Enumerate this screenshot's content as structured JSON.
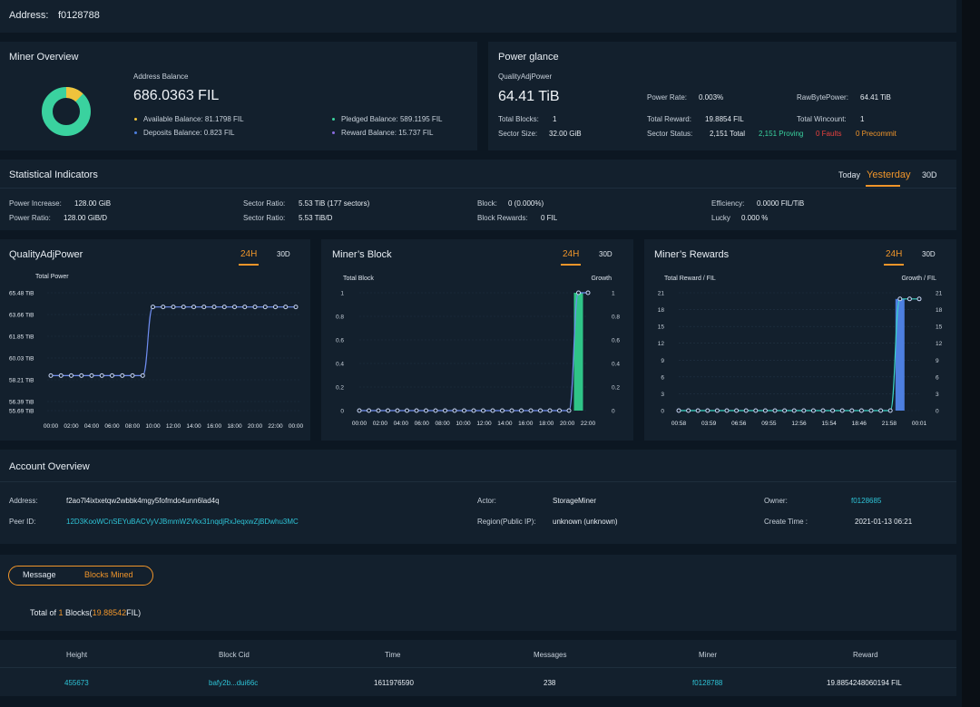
{
  "address_bar": {
    "label": "Address:",
    "value": "f0128788"
  },
  "miner_overview": {
    "title": "Miner Overview",
    "balance_label": "Address Balance",
    "balance_value": "686.0363 FIL",
    "donut_fraction_yellow": 0.12,
    "legend": [
      {
        "label": "Available Balance: 81.1798 FIL",
        "color": "#f0c33c"
      },
      {
        "label": "Deposits Balance: 0.823 FIL",
        "color": "#4d7fe0"
      },
      {
        "label": "Pledged Balance: 589.1195 FIL",
        "color": "#3ad29f"
      },
      {
        "label": "Reward Balance: 15.737 FIL",
        "color": "#8a6be0"
      }
    ]
  },
  "power_glance": {
    "title": "Power glance",
    "qap_label": "QualityAdjPower",
    "qap_value": "64.41 TiB",
    "total_blocks_label": "Total Blocks:",
    "total_blocks": "1",
    "sector_size_label": "Sector Size:",
    "sector_size": "32.00 GiB",
    "power_rate_label": "Power Rate:",
    "power_rate": "0.003%",
    "total_reward_label": "Total Reward:",
    "total_reward": "19.8854 FIL",
    "sector_status_label": "Sector Status:",
    "sector_total": "2,151 Total",
    "sector_proving": "2,151 Proving",
    "sector_faults": "0 Faults",
    "sector_precommit": "0 Precommit",
    "raw_power_label": "RawBytePower:",
    "raw_power": "64.41 TiB",
    "wincount_label": "Total Wincount:",
    "wincount": "1"
  },
  "stats": {
    "title": "Statistical Indicators",
    "tabs": [
      "Today",
      "Yesterday",
      "30D"
    ],
    "items": [
      {
        "label": "Power Increase:",
        "value": "128.00 GiB"
      },
      {
        "label": "Power Ratio:",
        "value": "128.00 GiB/D"
      },
      {
        "label": "Sector Ratio:",
        "value": "5.53 TiB (177 sectors)"
      },
      {
        "label": "Sector Ratio:",
        "value": "5.53 TiB/D"
      },
      {
        "label": "Block:",
        "value": "0 (0.000%)"
      },
      {
        "label": "Block Rewards:",
        "value": "0 FIL"
      },
      {
        "label": "Efficiency:",
        "value": "0.0000 FIL/TiB"
      },
      {
        "label": "Lucky",
        "value": "0.000 %"
      }
    ]
  },
  "charts": [
    {
      "title": "QualityAdjPower",
      "tabs": [
        "24H",
        "30D"
      ]
    },
    {
      "title": "Miner’s Block",
      "tabs": [
        "24H",
        "30D"
      ]
    },
    {
      "title": "Miner’s Rewards",
      "tabs": [
        "24H",
        "30D"
      ]
    }
  ],
  "chart_data": [
    {
      "type": "line",
      "ylabel": "Total Power",
      "yticks": [
        "65.48 TiB",
        "63.66 TiB",
        "61.85 TiB",
        "60.03 TiB",
        "58.21 TiB",
        "56.39 TiB",
        "55.69 TiB"
      ],
      "ylim": [
        55.69,
        65.48
      ],
      "xticks": [
        "00:00",
        "02:00",
        "04:00",
        "06:00",
        "08:00",
        "10:00",
        "12:00",
        "14:00",
        "16:00",
        "18:00",
        "20:00",
        "22:00",
        "00:00"
      ],
      "series": [
        {
          "values": [
            58.6,
            58.6,
            58.6,
            58.6,
            58.6,
            58.6,
            58.6,
            58.6,
            58.6,
            58.6,
            64.3,
            64.3,
            64.3,
            64.3,
            64.3,
            64.3,
            64.3,
            64.3,
            64.3,
            64.3,
            64.3,
            64.3,
            64.3,
            64.3,
            64.3
          ]
        }
      ],
      "color": "#6f8df0"
    },
    {
      "type": "bar+line",
      "ylabel": "Total Block",
      "y2label": "Growth",
      "yticks": [
        "1",
        "0.8",
        "0.6",
        "0.4",
        "0.2",
        "0"
      ],
      "y2ticks": [
        "1",
        "0.8",
        "0.6",
        "0.4",
        "0.2",
        "0"
      ],
      "ylim": [
        0,
        1
      ],
      "xticks": [
        "00:00",
        "02:00",
        "04:00",
        "06:00",
        "08:00",
        "10:00",
        "12:00",
        "14:00",
        "16:00",
        "18:00",
        "20:00",
        "22:00"
      ],
      "series": [
        {
          "kind": "line",
          "values": [
            0,
            0,
            0,
            0,
            0,
            0,
            0,
            0,
            0,
            0,
            0,
            0,
            0,
            0,
            0,
            0,
            0,
            0,
            0,
            0,
            0,
            0,
            0,
            1,
            1
          ]
        },
        {
          "kind": "bar",
          "values": [
            0,
            0,
            0,
            0,
            0,
            0,
            0,
            0,
            0,
            0,
            0,
            0,
            0,
            0,
            0,
            0,
            0,
            0,
            0,
            0,
            0,
            0,
            0,
            1,
            0
          ]
        }
      ],
      "line_color": "#6f8df0",
      "bar_color": "#2fc487"
    },
    {
      "type": "bar+line",
      "ylabel": "Total Reward / FIL",
      "y2label": "Growth / FIL",
      "yticks": [
        "21",
        "18",
        "15",
        "12",
        "9",
        "6",
        "3",
        "0"
      ],
      "y2ticks": [
        "21",
        "18",
        "15",
        "12",
        "9",
        "6",
        "3",
        "0"
      ],
      "ylim": [
        0,
        21
      ],
      "xticks": [
        "00:58",
        "03:59",
        "06:56",
        "09:55",
        "12:56",
        "15:54",
        "18:46",
        "21:58",
        "00:01"
      ],
      "series": [
        {
          "kind": "line",
          "values": [
            0,
            0,
            0,
            0,
            0,
            0,
            0,
            0,
            0,
            0,
            0,
            0,
            0,
            0,
            0,
            0,
            0,
            0,
            0,
            0,
            0,
            0,
            0,
            19.9,
            19.9,
            19.9
          ]
        },
        {
          "kind": "bar",
          "values": [
            0,
            0,
            0,
            0,
            0,
            0,
            0,
            0,
            0,
            0,
            0,
            0,
            0,
            0,
            0,
            0,
            0,
            0,
            0,
            0,
            0,
            0,
            0,
            19.9,
            0,
            0
          ]
        }
      ],
      "line_color": "#3ad2c4",
      "bar_color": "#4d7fe0"
    }
  ],
  "account": {
    "title": "Account Overview",
    "address_label": "Address:",
    "address": "f2ao7l4ixtxetqw2wbbk4mgy5fofmdo4unn6lad4q",
    "peer_label": "Peer ID:",
    "peer": "12D3KooWCnSEYuBACVyVJBmmW2Vkx31nqdjRxJeqxwZjBDwhu3MC",
    "actor_label": "Actor:",
    "actor": "StorageMiner",
    "region_label": "Region(Public IP):",
    "region": "unknown (unknown)",
    "owner_label": "Owner:",
    "owner": "f0128685",
    "create_label": "Create Time :",
    "create": "2021-01-13 06:21"
  },
  "blocks": {
    "tabs": [
      "Message",
      "Blocks Mined"
    ],
    "total_prefix": "Total of ",
    "total_count": "1",
    "total_mid": " Blocks(",
    "total_fil": "19.88542",
    "total_suffix": "FIL)",
    "columns": [
      "Height",
      "Block Cid",
      "Time",
      "Messages",
      "Miner",
      "Reward"
    ],
    "rows": [
      [
        "455673",
        "bafy2b...dui66c",
        "1611976590",
        "238",
        "f0128788",
        "19.8854248060194 FIL"
      ]
    ]
  }
}
